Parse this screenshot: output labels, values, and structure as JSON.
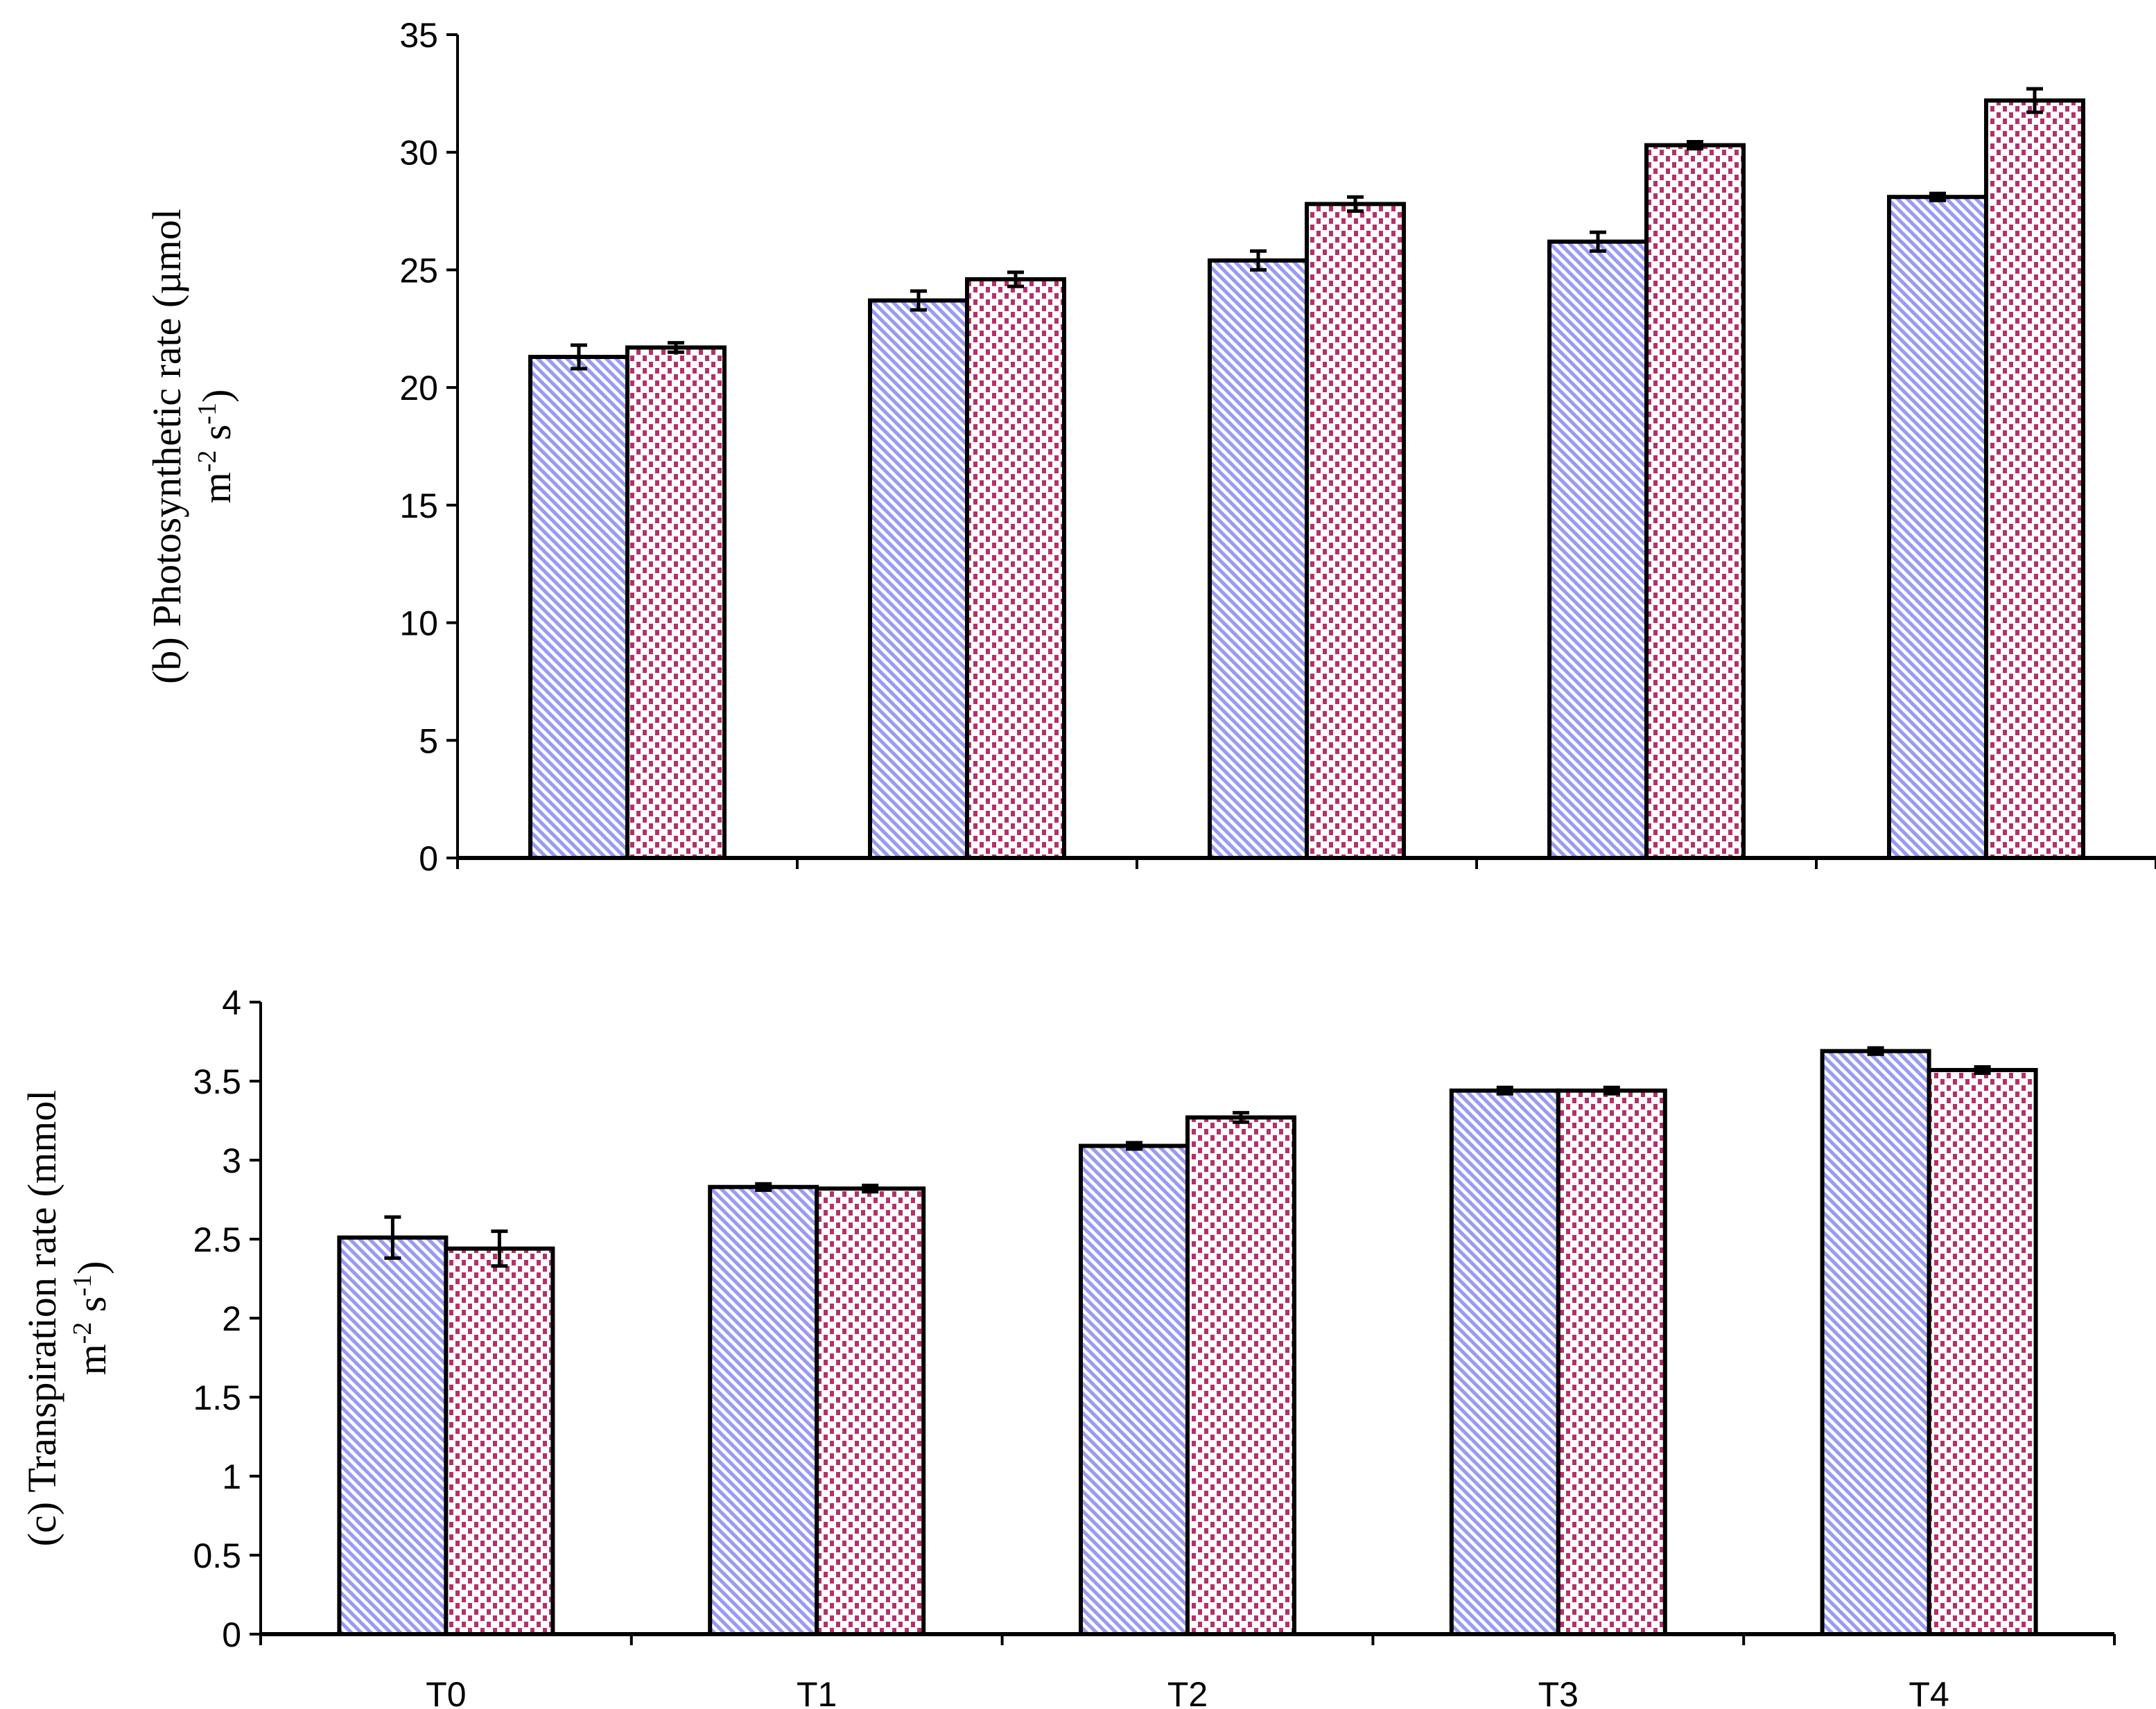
{
  "chart_data": [
    {
      "type": "bar",
      "ylabel_line1": "(b) Photosynthetic rate (µmol",
      "ylabel_line2_base": "m",
      "ylabel_line2_sup1": "-2",
      "ylabel_line2_mid": " s",
      "ylabel_line2_sup2": "-1",
      "ylabel_line2_end": ")",
      "xlabel": "",
      "categories": [
        "T0",
        "T1",
        "T2",
        "T3",
        "T4"
      ],
      "show_category_labels": false,
      "ylim": [
        0,
        35
      ],
      "yticks": [
        "0",
        "5",
        "10",
        "15",
        "20",
        "25",
        "30",
        "35"
      ],
      "grid": false,
      "series": [
        {
          "values": [
            21.3,
            23.7,
            25.4,
            26.2,
            28.1
          ],
          "errors": [
            0.5,
            0.4,
            0.4,
            0.4,
            0.15
          ],
          "pattern": "diagonal-stripes",
          "color": "#9a9af5"
        },
        {
          "values": [
            21.7,
            24.6,
            27.8,
            30.3,
            32.2
          ],
          "errors": [
            0.2,
            0.3,
            0.3,
            0.15,
            0.5
          ],
          "pattern": "dots",
          "color": "#b5306a"
        }
      ]
    },
    {
      "type": "bar",
      "ylabel_line1": "(c) Transpiration rate (mmol",
      "ylabel_line2_base": "m",
      "ylabel_line2_sup1": "-2",
      "ylabel_line2_mid": " s",
      "ylabel_line2_sup2": "-1",
      "ylabel_line2_end": ")",
      "xlabel": "",
      "categories": [
        "T0",
        "T1",
        "T2",
        "T3",
        "T4"
      ],
      "show_category_labels": true,
      "ylim": [
        0,
        4
      ],
      "yticks": [
        "0",
        "0.5",
        "1",
        "1.5",
        "2",
        "2.5",
        "3",
        "3.5",
        "4"
      ],
      "grid": false,
      "series": [
        {
          "values": [
            2.51,
            2.83,
            3.09,
            3.44,
            3.69
          ],
          "errors": [
            0.13,
            0.02,
            0.02,
            0.02,
            0.02
          ],
          "pattern": "diagonal-stripes",
          "color": "#9a9af5"
        },
        {
          "values": [
            2.44,
            2.82,
            3.27,
            3.44,
            3.57
          ],
          "errors": [
            0.11,
            0.02,
            0.03,
            0.02,
            0.02
          ],
          "pattern": "dots",
          "color": "#b5306a"
        }
      ]
    }
  ]
}
